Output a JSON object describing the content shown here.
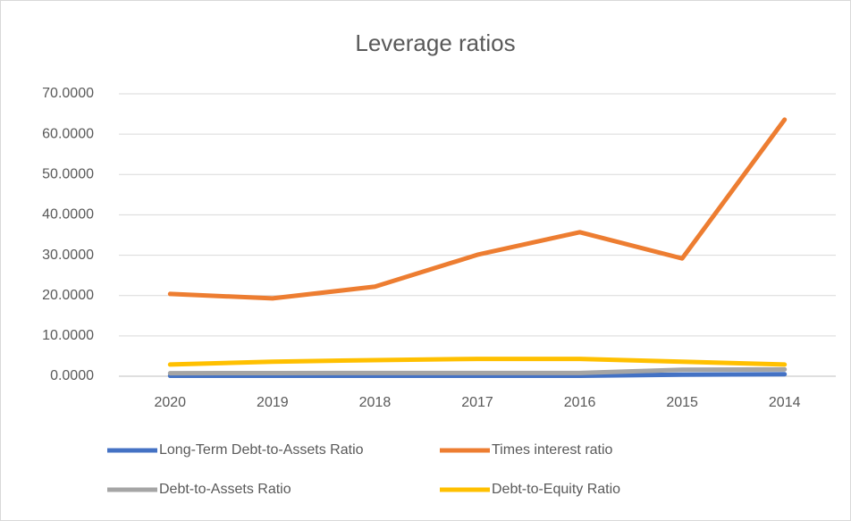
{
  "chart_data": {
    "type": "line",
    "title": "Leverage ratios",
    "categories": [
      "2020",
      "2019",
      "2018",
      "2017",
      "2016",
      "2015",
      "2014"
    ],
    "series": [
      {
        "name": "Long-Term Debt-to-Assets Ratio",
        "color": "#4472c4",
        "values": [
          0.1,
          0.1,
          0.1,
          0.1,
          0.1,
          0.4,
          0.5
        ]
      },
      {
        "name": "Times interest ratio",
        "color": "#ed7d31",
        "values": [
          20.4,
          19.3,
          22.2,
          30.1,
          35.7,
          29.2,
          63.6
        ]
      },
      {
        "name": "Debt-to-Assets Ratio",
        "color": "#a5a5a5",
        "values": [
          0.74,
          0.78,
          0.8,
          0.81,
          0.81,
          1.6,
          1.7
        ]
      },
      {
        "name": "Debt-to-Equity Ratio",
        "color": "#ffc000",
        "values": [
          2.9,
          3.6,
          4.0,
          4.3,
          4.3,
          3.6,
          2.9
        ]
      }
    ],
    "ylim": [
      0,
      70
    ],
    "yticks": [
      {
        "value": 0,
        "label": "0.0000"
      },
      {
        "value": 10,
        "label": "10.0000"
      },
      {
        "value": 20,
        "label": "20.0000"
      },
      {
        "value": 30,
        "label": "30.0000"
      },
      {
        "value": 40,
        "label": "40.0000"
      },
      {
        "value": 50,
        "label": "50.0000"
      },
      {
        "value": 60,
        "label": "60.0000"
      },
      {
        "value": 70,
        "label": "70.0000"
      }
    ],
    "grid": true,
    "legend": "bottom"
  }
}
